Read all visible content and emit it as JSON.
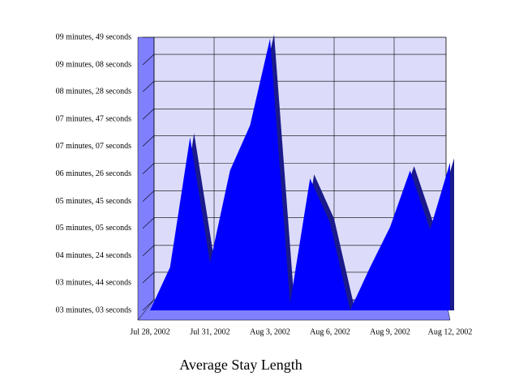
{
  "chart_data": {
    "type": "area",
    "title": "Average Stay Length",
    "categories": [
      "Jul 28, 2002",
      null,
      null,
      "Jul 31, 2002",
      null,
      null,
      "Aug 3, 2002",
      null,
      null,
      "Aug 6, 2002",
      null,
      null,
      "Aug 9, 2002",
      null,
      null,
      "Aug 12, 2002"
    ],
    "values": [
      183,
      247,
      440,
      253,
      391,
      458,
      587,
      193,
      379,
      313,
      183,
      247,
      307,
      391,
      303,
      403
    ],
    "color": "#0000ff",
    "ylim": [
      183,
      589
    ],
    "yticks": [
      {
        "value": 183,
        "label": "03 minutes, 03 seconds"
      },
      {
        "value": 224,
        "label": "03 minutes, 44 seconds"
      },
      {
        "value": 264,
        "label": "04 minutes, 24 seconds"
      },
      {
        "value": 305,
        "label": "05 minutes, 05 seconds"
      },
      {
        "value": 345,
        "label": "05 minutes, 45 seconds"
      },
      {
        "value": 386,
        "label": "06 minutes, 26 seconds"
      },
      {
        "value": 427,
        "label": "07 minutes, 07 seconds"
      },
      {
        "value": 467,
        "label": "07 minutes, 47 seconds"
      },
      {
        "value": 508,
        "label": "08 minutes, 28 seconds"
      },
      {
        "value": 548,
        "label": "09 minutes, 08 seconds"
      },
      {
        "value": 589,
        "label": "09 minutes, 49 seconds"
      }
    ],
    "grid": true
  }
}
